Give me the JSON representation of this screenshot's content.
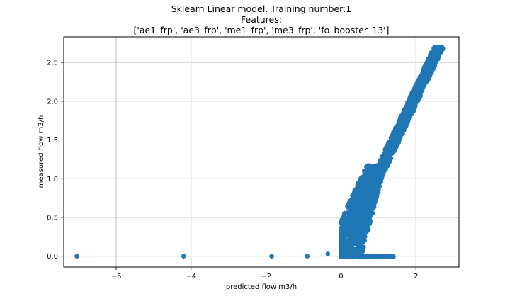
{
  "chart_data": {
    "type": "scatter",
    "title_lines": [
      "Sklearn Linear model. Training number:1",
      "Features:",
      "['ae1_frp', 'ae3_frp', 'me1_frp', 'me3_frp', 'fo_booster_13']"
    ],
    "xlabel": "predicted flow m3/h",
    "ylabel": "measured flow m3/h",
    "xlim": [
      -7.4,
      3.15
    ],
    "ylim": [
      -0.14,
      2.83
    ],
    "x_ticks": [
      -6,
      -4,
      -2,
      0,
      2
    ],
    "x_tick_labels": [
      "−6",
      "−4",
      "−2",
      "0",
      "2"
    ],
    "y_ticks": [
      0.0,
      0.5,
      1.0,
      1.5,
      2.0,
      2.5
    ],
    "y_tick_labels": [
      "0.0",
      "0.5",
      "1.0",
      "1.5",
      "2.0",
      "2.5"
    ],
    "grid": true,
    "point_color": "#1f77b4",
    "outlier_points": [
      {
        "x": -7.05,
        "y": 0.0
      },
      {
        "x": -4.2,
        "y": 0.0
      },
      {
        "x": -1.85,
        "y": 0.0
      },
      {
        "x": -0.9,
        "y": 0.0
      },
      {
        "x": -0.35,
        "y": 0.03
      },
      {
        "x": 0.0,
        "y": 0.02
      },
      {
        "x": 0.02,
        "y": 0.45
      }
    ],
    "zero_band": {
      "x_start": 0.0,
      "x_end": 1.42,
      "y": 0.0
    },
    "main_band_ridge": [
      {
        "x": 0.05,
        "y": 0.05
      },
      {
        "x": 0.4,
        "y": 0.3
      },
      {
        "x": 0.7,
        "y": 0.6
      },
      {
        "x": 1.0,
        "y": 1.0
      },
      {
        "x": 1.3,
        "y": 1.45
      },
      {
        "x": 1.6,
        "y": 1.7
      },
      {
        "x": 1.9,
        "y": 1.95
      },
      {
        "x": 2.2,
        "y": 2.2
      },
      {
        "x": 2.45,
        "y": 2.45
      },
      {
        "x": 2.65,
        "y": 2.7
      }
    ]
  }
}
